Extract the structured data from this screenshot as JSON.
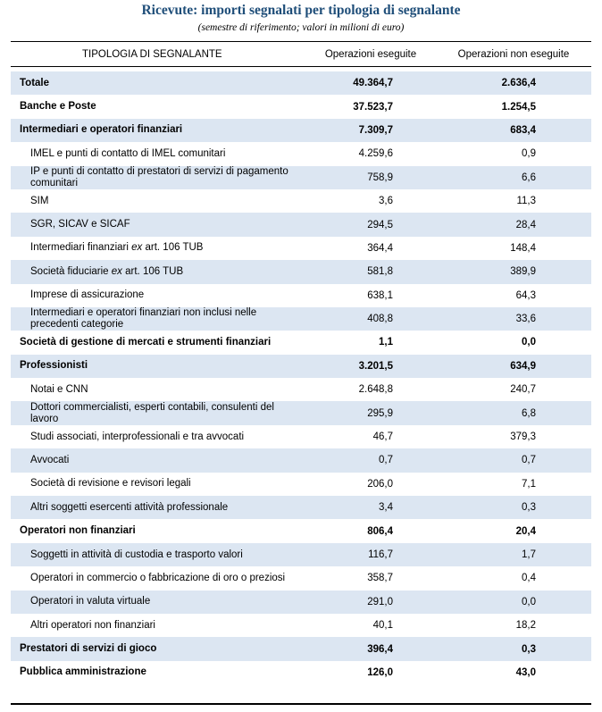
{
  "title": "Ricevute: importi segnalati per tipologia di segnalante",
  "subtitle": "(semestre di riferimento; valori in milioni di euro)",
  "columns": [
    "TIPOLOGIA DI SEGNALANTE",
    "Operazioni eseguite",
    "Operazioni non eseguite"
  ],
  "rows": [
    {
      "label": "Totale",
      "exec": "49.364,7",
      "nonexec": "2.636,4",
      "kind": "cat",
      "shade": true
    },
    {
      "label": "Banche e Poste",
      "exec": "37.523,7",
      "nonexec": "1.254,5",
      "kind": "cat",
      "shade": false
    },
    {
      "label": "Intermediari e operatori finanziari",
      "exec": "7.309,7",
      "nonexec": "683,4",
      "kind": "cat",
      "shade": true
    },
    {
      "label": "IMEL e punti di contatto di IMEL comunitari",
      "exec": "4.259,6",
      "nonexec": "0,9",
      "kind": "sub",
      "shade": false
    },
    {
      "label": "IP e punti di contatto di prestatori di servizi di pagamento comunitari",
      "exec": "758,9",
      "nonexec": "6,6",
      "kind": "sub",
      "shade": true
    },
    {
      "label": "SIM",
      "exec": "3,6",
      "nonexec": "11,3",
      "kind": "sub",
      "shade": false
    },
    {
      "label": "SGR, SICAV e SICAF",
      "exec": "294,5",
      "nonexec": "28,4",
      "kind": "sub",
      "shade": true
    },
    {
      "label": "Intermediari finanziari ",
      "em": "ex",
      "after": " art. 106 TUB",
      "exec": "364,4",
      "nonexec": "148,4",
      "kind": "sub",
      "shade": false
    },
    {
      "label": "Società fiduciarie ",
      "em": "ex",
      "after": " art. 106 TUB",
      "exec": "581,8",
      "nonexec": "389,9",
      "kind": "sub",
      "shade": true
    },
    {
      "label": "Imprese di assicurazione",
      "exec": "638,1",
      "nonexec": "64,3",
      "kind": "sub",
      "shade": false
    },
    {
      "label": "Intermediari e operatori finanziari non inclusi nelle precedenti categorie",
      "exec": "408,8",
      "nonexec": "33,6",
      "kind": "sub",
      "shade": true
    },
    {
      "label": "Società di gestione di mercati e strumenti finanziari",
      "exec": "1,1",
      "nonexec": "0,0",
      "kind": "cat",
      "shade": false
    },
    {
      "label": "Professionisti",
      "exec": "3.201,5",
      "nonexec": "634,9",
      "kind": "cat",
      "shade": true
    },
    {
      "label": "Notai e CNN",
      "exec": "2.648,8",
      "nonexec": "240,7",
      "kind": "sub",
      "shade": false
    },
    {
      "label": "Dottori commercialisti, esperti contabili, consulenti del lavoro",
      "exec": "295,9",
      "nonexec": "6,8",
      "kind": "sub",
      "shade": true
    },
    {
      "label": "Studi associati, interprofessionali e tra avvocati",
      "exec": "46,7",
      "nonexec": "379,3",
      "kind": "sub",
      "shade": false
    },
    {
      "label": "Avvocati",
      "exec": "0,7",
      "nonexec": "0,7",
      "kind": "sub",
      "shade": true
    },
    {
      "label": "Società di revisione e revisori legali",
      "exec": "206,0",
      "nonexec": "7,1",
      "kind": "sub",
      "shade": false
    },
    {
      "label": "Altri soggetti esercenti attività professionale",
      "exec": "3,4",
      "nonexec": "0,3",
      "kind": "sub",
      "shade": true
    },
    {
      "label": "Operatori non finanziari",
      "exec": "806,4",
      "nonexec": "20,4",
      "kind": "cat",
      "shade": false
    },
    {
      "label": "Soggetti in attività di custodia e trasporto valori",
      "exec": "116,7",
      "nonexec": "1,7",
      "kind": "sub",
      "shade": true
    },
    {
      "label": "Operatori in commercio o fabbricazione di oro o preziosi",
      "exec": "358,7",
      "nonexec": "0,4",
      "kind": "sub",
      "shade": false
    },
    {
      "label": "Operatori in valuta virtuale",
      "exec": "291,0",
      "nonexec": "0,0",
      "kind": "sub",
      "shade": true
    },
    {
      "label": "Altri operatori non finanziari",
      "exec": "40,1",
      "nonexec": "18,2",
      "kind": "sub",
      "shade": false
    },
    {
      "label": "Prestatori di servizi di gioco",
      "exec": "396,4",
      "nonexec": "0,3",
      "kind": "cat",
      "shade": true
    },
    {
      "label": "Pubblica amministrazione",
      "exec": "126,0",
      "nonexec": "43,0",
      "kind": "cat",
      "shade": false
    }
  ]
}
